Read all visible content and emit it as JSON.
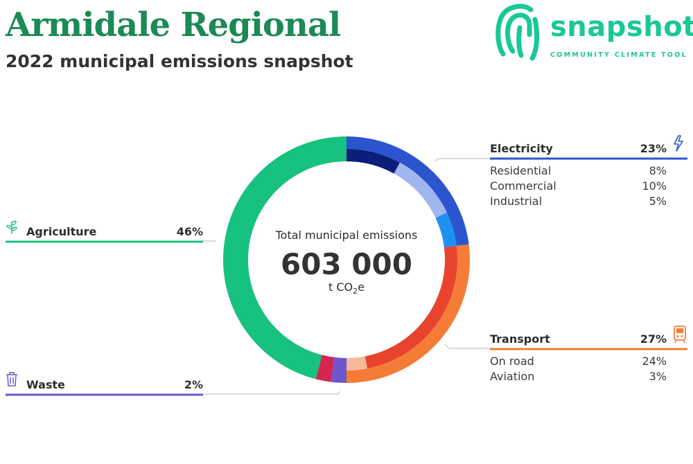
{
  "header": {
    "title": "Armidale Regional",
    "subtitle": "2022 municipal emissions snapshot"
  },
  "logo": {
    "wordmark": "snapshot",
    "tagline": "COMMUNITY CLIMATE TOOL",
    "icon": "fingerprint-icon",
    "color": "#19c896"
  },
  "chart_data": {
    "type": "pie",
    "style": "donut",
    "center": {
      "label": "Total municipal emissions",
      "value": "603 000",
      "unit_prefix": "t CO",
      "unit_sub": "2",
      "unit_suffix": "e"
    },
    "categories": [
      {
        "name": "Electricity",
        "value_label": "23%",
        "value": 23,
        "color": "#2b55cf",
        "icon": "lightning-icon",
        "legend_side": "right",
        "subcategories": [
          {
            "name": "Residential",
            "value_label": "8%",
            "value": 8,
            "color": "#0b1e7a"
          },
          {
            "name": "Commercial",
            "value_label": "10%",
            "value": 10,
            "color": "#9fb6ee"
          },
          {
            "name": "Industrial",
            "value_label": "5%",
            "value": 5,
            "color": "#1e90f0"
          }
        ]
      },
      {
        "name": "Transport",
        "value_label": "27%",
        "value": 27,
        "color": "#f47c36",
        "icon": "train-icon",
        "legend_side": "right",
        "subcategories": [
          {
            "name": "On road",
            "value_label": "24%",
            "value": 24,
            "color": "#e8442d"
          },
          {
            "name": "Aviation",
            "value_label": "3%",
            "value": 3,
            "color": "#f7b89a"
          }
        ]
      },
      {
        "name": "Waste",
        "value_label": "2%",
        "value": 2,
        "color": "#6e56cc",
        "icon": "bin-icon",
        "legend_side": "left",
        "subcategories": []
      },
      {
        "name": "",
        "value": 2,
        "color": "#d4264f",
        "legend_side": "none",
        "subcategories": []
      },
      {
        "name": "Agriculture",
        "value_label": "46%",
        "value": 46,
        "color": "#17c17f",
        "icon": "sprout-icon",
        "legend_side": "left",
        "subcategories": []
      }
    ]
  }
}
